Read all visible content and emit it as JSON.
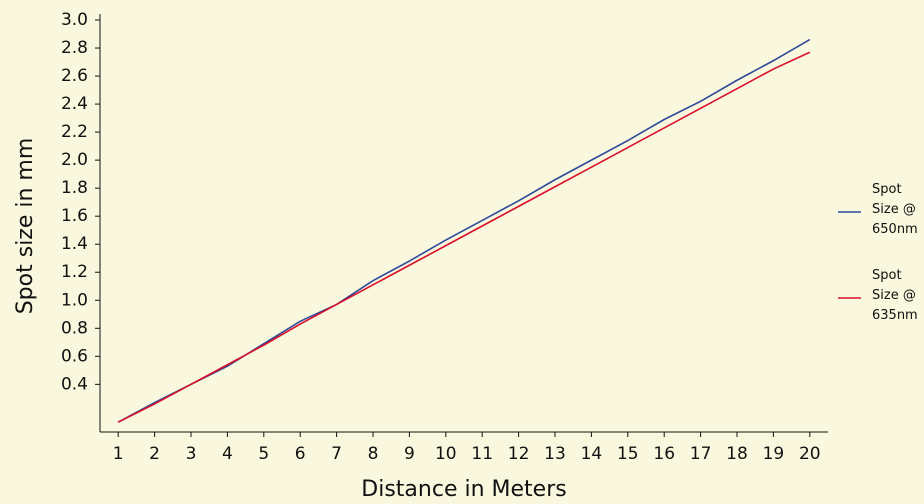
{
  "chart_data": {
    "type": "line",
    "x_label": "Distance in Meters",
    "y_label": "Spot size in mm",
    "x": [
      1,
      2,
      3,
      4,
      5,
      6,
      7,
      8,
      9,
      10,
      11,
      12,
      13,
      14,
      15,
      16,
      17,
      18,
      19,
      20
    ],
    "xlim": [
      0.5,
      20.5
    ],
    "xticks": [
      1,
      2,
      3,
      4,
      5,
      6,
      7,
      8,
      9,
      10,
      11,
      12,
      13,
      14,
      15,
      16,
      17,
      18,
      19,
      20
    ],
    "ylim": [
      0.06,
      3.0
    ],
    "yticks": [
      0.4,
      0.6,
      0.8,
      {
        "value": 1,
        "label": "1.0"
      },
      1.2,
      1.4,
      1.6,
      1.8,
      {
        "value": 2,
        "label": "2.0"
      },
      2.2,
      2.4,
      2.6,
      2.8,
      {
        "value": 3,
        "label": "3.0"
      }
    ],
    "series": [
      {
        "name": "Spot Size @ 650nm",
        "color": "#2e4a9a",
        "values": [
          0.13,
          0.27,
          0.4,
          0.53,
          0.69,
          0.85,
          0.97,
          1.14,
          1.28,
          1.43,
          1.57,
          1.71,
          1.86,
          2.0,
          2.14,
          2.29,
          2.42,
          2.57,
          2.71,
          2.86
        ]
      },
      {
        "name": "Spot Size @ 635nm",
        "color": "#d8102a",
        "values": [
          0.13,
          0.26,
          0.4,
          0.54,
          0.68,
          0.83,
          0.97,
          1.11,
          1.25,
          1.39,
          1.53,
          1.67,
          1.81,
          1.95,
          2.09,
          2.23,
          2.37,
          2.51,
          2.65,
          2.77
        ]
      }
    ]
  }
}
